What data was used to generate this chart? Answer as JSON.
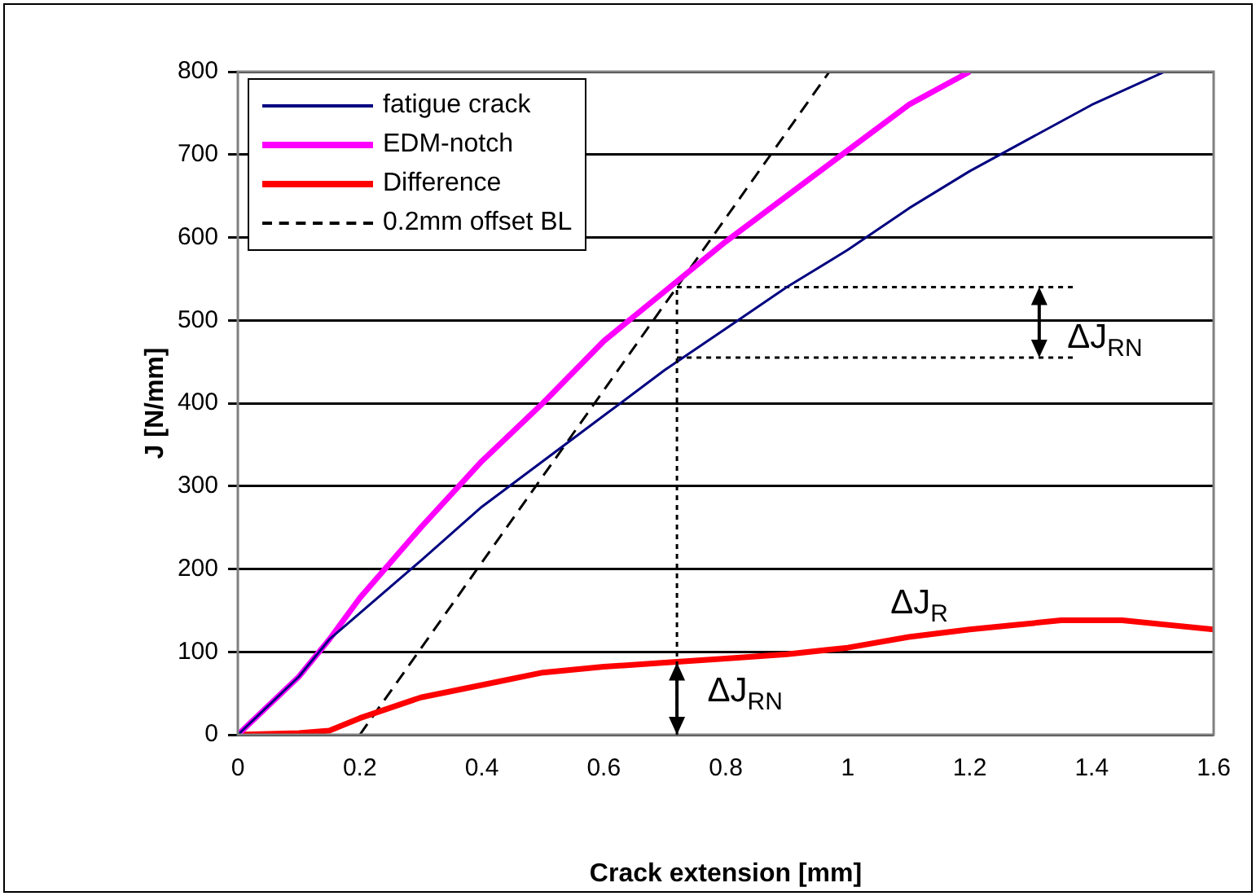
{
  "chart_data": {
    "type": "line",
    "xlabel": "Crack extension [mm]",
    "ylabel": "J [N/mm]",
    "xlim": [
      0,
      1.6
    ],
    "xticks": [
      0,
      0.2,
      0.4,
      0.6,
      0.8,
      1,
      1.2,
      1.4,
      1.6
    ],
    "ylim": [
      0,
      800
    ],
    "yticks": [
      0,
      100,
      200,
      300,
      400,
      500,
      600,
      700,
      800
    ],
    "grid": "y",
    "legend": "top left",
    "marker": "none",
    "series": [
      {
        "name": "fatigue crack",
        "color": "#000080",
        "line_style": "solid",
        "x": [
          0,
          0.1,
          0.15,
          0.3,
          0.4,
          0.5,
          0.6,
          0.7,
          0.8,
          0.9,
          1.0,
          1.1,
          1.2,
          1.3,
          1.4,
          1.52
        ],
        "values": [
          0,
          70,
          115,
          210,
          275,
          330,
          385,
          440,
          490,
          540,
          585,
          635,
          680,
          720,
          760,
          800
        ]
      },
      {
        "name": "EDM-notch",
        "color": "#ff00ff",
        "line_style": "solid",
        "x": [
          0,
          0.1,
          0.15,
          0.2,
          0.3,
          0.4,
          0.5,
          0.6,
          0.7,
          0.8,
          0.9,
          1.0,
          1.1,
          1.2
        ],
        "values": [
          0,
          70,
          115,
          165,
          250,
          330,
          400,
          475,
          535,
          595,
          650,
          705,
          760,
          800
        ]
      },
      {
        "name": "Difference",
        "color": "#ff0000",
        "line_style": "solid",
        "x": [
          0,
          0.1,
          0.15,
          0.2,
          0.3,
          0.4,
          0.5,
          0.6,
          0.7,
          0.8,
          0.9,
          1.0,
          1.1,
          1.2,
          1.35,
          1.45,
          1.6
        ],
        "values": [
          0,
          2,
          5,
          20,
          45,
          60,
          75,
          82,
          87,
          92,
          97,
          105,
          118,
          127,
          138,
          138,
          127
        ]
      },
      {
        "name": "0.2mm offset BL",
        "color": "#000000",
        "line_style": "dashed",
        "x": [
          0.2,
          0.97
        ],
        "values": [
          0,
          800
        ]
      },
      {
        "color": "#000000",
        "line_style": "dotted",
        "x": [
          0.72,
          1.37
        ],
        "values": [
          540,
          540
        ]
      },
      {
        "color": "#000000",
        "line_style": "dotted",
        "x": [
          0.72,
          1.37
        ],
        "values": [
          455,
          455
        ]
      }
    ],
    "annotations": [
      "ΔJ$_{RN}$",
      "ΔJ$_{R}$",
      "ΔJ$_{RN}$"
    ]
  }
}
